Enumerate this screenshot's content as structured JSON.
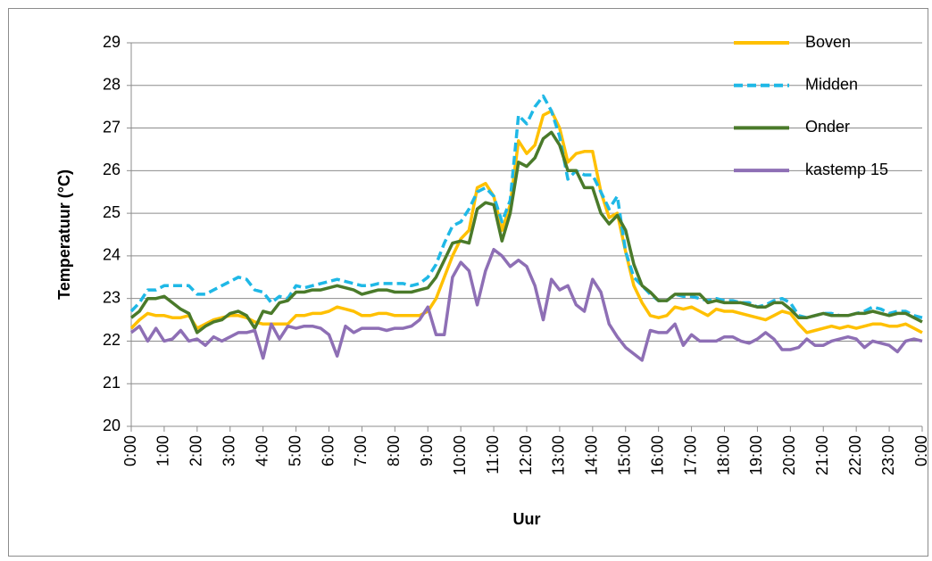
{
  "chart_data": {
    "type": "line",
    "y_label": "Temperatuur (°C)",
    "x_label": "Uur",
    "categories": [
      "0:00",
      null,
      null,
      null,
      "1:00",
      null,
      null,
      null,
      "2:00",
      null,
      null,
      null,
      "3:00",
      null,
      null,
      null,
      "4:00",
      null,
      null,
      null,
      "5:00",
      null,
      null,
      null,
      "6:00",
      null,
      null,
      null,
      "7:00",
      null,
      null,
      null,
      "8:00",
      null,
      null,
      null,
      "9:00",
      null,
      null,
      null,
      "10:00",
      null,
      null,
      null,
      "11:00",
      null,
      null,
      null,
      "12:00",
      null,
      null,
      null,
      "13:00",
      null,
      null,
      null,
      "14:00",
      null,
      null,
      null,
      "15:00",
      null,
      null,
      null,
      "16:00",
      null,
      null,
      null,
      "17:00",
      null,
      null,
      null,
      "18:00",
      null,
      null,
      null,
      "19:00",
      null,
      null,
      null,
      "20:00",
      null,
      null,
      null,
      "21:00",
      null,
      null,
      null,
      "22:00",
      null,
      null,
      null,
      "23:00",
      null,
      null,
      null,
      "0:00"
    ],
    "ylim": [
      20,
      29
    ],
    "yticks": [
      20,
      21,
      22,
      23,
      24,
      25,
      26,
      27,
      28,
      29
    ],
    "grid": true,
    "legend": "top-right",
    "series": [
      {
        "name": "Boven",
        "color": "#ffc000",
        "dashed": false,
        "values": [
          22.3,
          22.5,
          22.65,
          22.6,
          22.6,
          22.55,
          22.55,
          22.6,
          22.3,
          22.4,
          22.5,
          22.55,
          22.6,
          22.6,
          22.55,
          22.45,
          22.4,
          22.4,
          22.4,
          22.4,
          22.6,
          22.6,
          22.65,
          22.65,
          22.7,
          22.8,
          22.75,
          22.7,
          22.6,
          22.6,
          22.65,
          22.65,
          22.6,
          22.6,
          22.6,
          22.6,
          22.7,
          23.0,
          23.5,
          24.0,
          24.4,
          24.6,
          25.6,
          25.7,
          25.4,
          24.6,
          25.2,
          26.7,
          26.4,
          26.6,
          27.3,
          27.4,
          27.0,
          26.2,
          26.4,
          26.45,
          26.45,
          25.5,
          24.9,
          25.0,
          24.1,
          23.3,
          22.9,
          22.6,
          22.55,
          22.6,
          22.8,
          22.75,
          22.8,
          22.7,
          22.6,
          22.75,
          22.7,
          22.7,
          22.65,
          22.6,
          22.55,
          22.5,
          22.6,
          22.7,
          22.65,
          22.4,
          22.2,
          22.25,
          22.3,
          22.35,
          22.3,
          22.35,
          22.3,
          22.35,
          22.4,
          22.4,
          22.35,
          22.35,
          22.4,
          22.3,
          22.2
        ]
      },
      {
        "name": "Midden",
        "color": "#1fb8e6",
        "dashed": true,
        "values": [
          22.7,
          22.9,
          23.2,
          23.2,
          23.3,
          23.3,
          23.3,
          23.3,
          23.1,
          23.1,
          23.2,
          23.3,
          23.4,
          23.5,
          23.45,
          23.2,
          23.15,
          22.9,
          23.05,
          23.0,
          23.3,
          23.25,
          23.3,
          23.35,
          23.4,
          23.45,
          23.4,
          23.35,
          23.3,
          23.3,
          23.35,
          23.35,
          23.35,
          23.35,
          23.3,
          23.35,
          23.5,
          23.8,
          24.3,
          24.7,
          24.8,
          25.1,
          25.5,
          25.6,
          25.4,
          24.8,
          25.3,
          27.3,
          27.1,
          27.5,
          27.75,
          27.4,
          26.8,
          25.8,
          26.0,
          25.9,
          25.9,
          25.5,
          25.1,
          25.4,
          24.1,
          23.5,
          23.3,
          23.1,
          22.95,
          22.95,
          23.1,
          23.05,
          23.05,
          23.0,
          22.95,
          23.0,
          22.95,
          22.95,
          22.9,
          22.9,
          22.8,
          22.85,
          22.95,
          23.0,
          22.9,
          22.6,
          22.55,
          22.6,
          22.65,
          22.65,
          22.6,
          22.6,
          22.65,
          22.7,
          22.8,
          22.75,
          22.65,
          22.7,
          22.7,
          22.6,
          22.55
        ]
      },
      {
        "name": "Onder",
        "color": "#4a7a2a",
        "dashed": false,
        "values": [
          22.55,
          22.7,
          23.0,
          23.0,
          23.05,
          22.9,
          22.75,
          22.65,
          22.2,
          22.35,
          22.45,
          22.5,
          22.65,
          22.7,
          22.6,
          22.3,
          22.7,
          22.65,
          22.9,
          22.95,
          23.15,
          23.15,
          23.2,
          23.2,
          23.25,
          23.3,
          23.25,
          23.2,
          23.1,
          23.15,
          23.2,
          23.2,
          23.15,
          23.15,
          23.15,
          23.2,
          23.25,
          23.5,
          23.9,
          24.3,
          24.35,
          24.3,
          25.1,
          25.25,
          25.2,
          24.35,
          25.0,
          26.2,
          26.1,
          26.3,
          26.75,
          26.9,
          26.6,
          26.0,
          26.0,
          25.6,
          25.6,
          25.0,
          24.75,
          24.95,
          24.6,
          23.8,
          23.3,
          23.15,
          22.95,
          22.95,
          23.1,
          23.1,
          23.1,
          23.1,
          22.9,
          22.95,
          22.9,
          22.9,
          22.9,
          22.85,
          22.8,
          22.8,
          22.9,
          22.9,
          22.75,
          22.55,
          22.55,
          22.6,
          22.65,
          22.6,
          22.6,
          22.6,
          22.65,
          22.65,
          22.7,
          22.65,
          22.6,
          22.65,
          22.65,
          22.55,
          22.45
        ]
      },
      {
        "name": "kastemp 15",
        "color": "#8e6fb5",
        "dashed": false,
        "values": [
          22.2,
          22.35,
          22.0,
          22.3,
          22.0,
          22.05,
          22.25,
          22.0,
          22.05,
          21.9,
          22.1,
          22.0,
          22.1,
          22.2,
          22.2,
          22.25,
          21.6,
          22.4,
          22.05,
          22.35,
          22.3,
          22.35,
          22.35,
          22.3,
          22.15,
          21.65,
          22.35,
          22.2,
          22.3,
          22.3,
          22.3,
          22.25,
          22.3,
          22.3,
          22.35,
          22.5,
          22.8,
          22.15,
          22.15,
          23.5,
          23.85,
          23.65,
          22.85,
          23.65,
          24.15,
          24.0,
          23.75,
          23.9,
          23.75,
          23.3,
          22.5,
          23.45,
          23.2,
          23.3,
          22.85,
          22.7,
          23.45,
          23.15,
          22.4,
          22.1,
          21.85,
          21.7,
          21.55,
          22.25,
          22.2,
          22.2,
          22.4,
          21.9,
          22.15,
          22.0,
          22.0,
          22.0,
          22.1,
          22.1,
          22.0,
          21.95,
          22.05,
          22.2,
          22.05,
          21.8,
          21.8,
          21.85,
          22.05,
          21.9,
          21.9,
          22.0,
          22.05,
          22.1,
          22.05,
          21.85,
          22.0,
          21.95,
          21.9,
          21.75,
          22.0,
          22.05,
          22.0
        ]
      }
    ]
  }
}
